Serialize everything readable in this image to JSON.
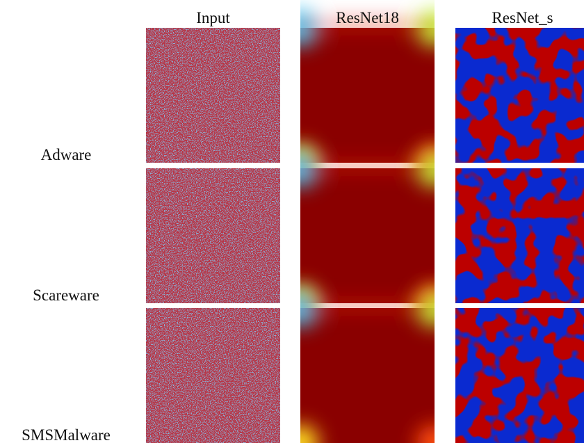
{
  "figure": {
    "columns": [
      "Input",
      "ResNet18",
      "ResNet_s"
    ],
    "rows": [
      "Adware",
      "Scareware",
      "SMSMalware"
    ]
  }
}
